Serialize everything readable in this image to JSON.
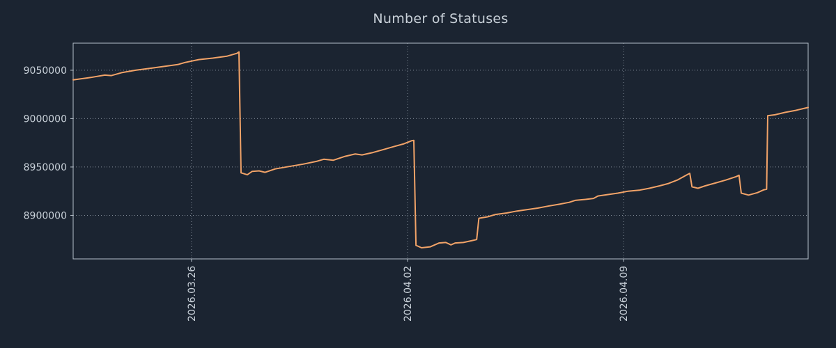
{
  "chart_data": {
    "type": "line",
    "title": "Number of Statuses",
    "xlabel": "",
    "ylabel": "",
    "ylim": [
      8855000,
      9078000
    ],
    "yticks": [
      8900000,
      8950000,
      9000000,
      9050000
    ],
    "xticks": [
      {
        "label": "2026.03.26",
        "t": 0.161
      },
      {
        "label": "2026.04.02",
        "t": 0.455
      },
      {
        "label": "2026.04.09",
        "t": 0.749
      }
    ],
    "grid": "dotted",
    "legend": "none",
    "colors": {
      "background": "#1b2431",
      "line": "#f2a368",
      "text": "#c9d1d9",
      "grid": "#aeb9c4",
      "border": "#b6c0ca"
    },
    "series": [
      {
        "name": "statuses",
        "color": "#f2a368",
        "points": [
          [
            0,
            9040000
          ],
          [
            0.024,
            9042500
          ],
          [
            0.043,
            9045000
          ],
          [
            0.052,
            9044500
          ],
          [
            0.066,
            9047500
          ],
          [
            0.085,
            9050000
          ],
          [
            0.105,
            9052000
          ],
          [
            0.124,
            9054000
          ],
          [
            0.143,
            9056000
          ],
          [
            0.152,
            9058000
          ],
          [
            0.171,
            9061000
          ],
          [
            0.19,
            9062500
          ],
          [
            0.209,
            9064500
          ],
          [
            0.223,
            9067500
          ],
          [
            0.2256,
            9069000
          ],
          [
            0.2284,
            8944000
          ],
          [
            0.237,
            8942000
          ],
          [
            0.2436,
            8945500
          ],
          [
            0.253,
            8946000
          ],
          [
            0.261,
            8944500
          ],
          [
            0.275,
            8948000
          ],
          [
            0.294,
            8950500
          ],
          [
            0.313,
            8953000
          ],
          [
            0.332,
            8956000
          ],
          [
            0.341,
            8958000
          ],
          [
            0.354,
            8957000
          ],
          [
            0.37,
            8961000
          ],
          [
            0.384,
            8963500
          ],
          [
            0.393,
            8962500
          ],
          [
            0.408,
            8965000
          ],
          [
            0.422,
            8968000
          ],
          [
            0.436,
            8971000
          ],
          [
            0.45,
            8974000
          ],
          [
            0.46,
            8977000
          ],
          [
            0.4635,
            8977500
          ],
          [
            0.4664,
            8869000
          ],
          [
            0.474,
            8866500
          ],
          [
            0.486,
            8867500
          ],
          [
            0.498,
            8871500
          ],
          [
            0.507,
            8872000
          ],
          [
            0.514,
            8869500
          ],
          [
            0.52,
            8871500
          ],
          [
            0.531,
            8872000
          ],
          [
            0.543,
            8874000
          ],
          [
            0.549,
            8875000
          ],
          [
            0.552,
            8897000
          ],
          [
            0.564,
            8898500
          ],
          [
            0.575,
            8901000
          ],
          [
            0.59,
            8902500
          ],
          [
            0.604,
            8904500
          ],
          [
            0.618,
            8906000
          ],
          [
            0.632,
            8907500
          ],
          [
            0.646,
            8909500
          ],
          [
            0.661,
            8911500
          ],
          [
            0.675,
            8913500
          ],
          [
            0.683,
            8915500
          ],
          [
            0.697,
            8916500
          ],
          [
            0.708,
            8917500
          ],
          [
            0.714,
            8920000
          ],
          [
            0.727,
            8921500
          ],
          [
            0.741,
            8923000
          ],
          [
            0.755,
            8925000
          ],
          [
            0.77,
            8926000
          ],
          [
            0.784,
            8928000
          ],
          [
            0.798,
            8930500
          ],
          [
            0.81,
            8933000
          ],
          [
            0.822,
            8936500
          ],
          [
            0.833,
            8941000
          ],
          [
            0.839,
            8943500
          ],
          [
            0.842,
            8929500
          ],
          [
            0.85,
            8928000
          ],
          [
            0.86,
            8930500
          ],
          [
            0.874,
            8933500
          ],
          [
            0.888,
            8936500
          ],
          [
            0.902,
            8940000
          ],
          [
            0.906,
            8941500
          ],
          [
            0.909,
            8923000
          ],
          [
            0.919,
            8921000
          ],
          [
            0.931,
            8923500
          ],
          [
            0.94,
            8926500
          ],
          [
            0.9435,
            8927000
          ],
          [
            0.945,
            9003000
          ],
          [
            0.955,
            9004000
          ],
          [
            0.969,
            9006500
          ],
          [
            0.983,
            9008500
          ],
          [
            1,
            9011500
          ]
        ]
      }
    ]
  }
}
